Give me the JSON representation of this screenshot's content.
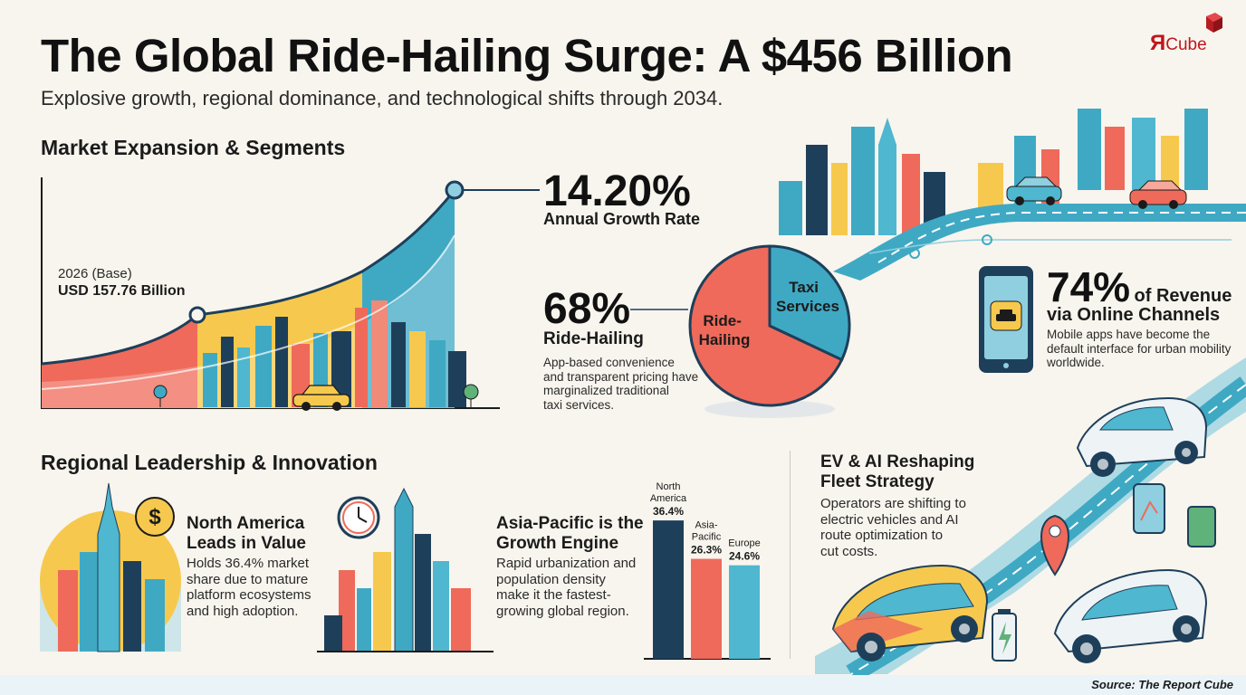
{
  "header": {
    "title": "The Global Ride-Hailing Surge: A $456 Billion",
    "subtitle": "Explosive growth, regional dominance, and technological shifts through 2034."
  },
  "logo": {
    "mark": "Я",
    "text": "Cube"
  },
  "market": {
    "heading": "Market Expansion & Segments",
    "base_year_label": "2026 (Base)",
    "base_value_label": "USD 157.76 Billion",
    "growth_value": "14.20%",
    "growth_label": "Annual Growth Rate"
  },
  "segments": {
    "ride_hailing_value": "68%",
    "ride_hailing_label": "Ride-Hailing",
    "ride_hailing_desc_lines": [
      "App-based convenience",
      "and transparent pricing have",
      "marginalized traditional",
      "taxi services."
    ],
    "pie_label_ride": [
      "Ride-",
      "Hailing"
    ],
    "pie_label_taxi": [
      "Taxi",
      "Services"
    ]
  },
  "online": {
    "value": "74%",
    "value_suffix": "of Revenue",
    "label": "via Online Channels",
    "desc_lines": [
      "Mobile apps have become the",
      "default interface for urban mobility",
      "worldwide."
    ]
  },
  "regional": {
    "heading": "Regional Leadership & Innovation",
    "na_title_lines": [
      "North America",
      "Leads in Value"
    ],
    "na_desc_lines": [
      "Holds 36.4% market",
      "share due to mature",
      "platform ecosystems",
      "and high adoption."
    ],
    "ap_title_lines": [
      "Asia-Pacific is the",
      "Growth Engine"
    ],
    "ap_desc_lines": [
      "Rapid urbanization and",
      "population density",
      "make it the fastest-",
      "growing global region."
    ]
  },
  "ev": {
    "title_lines": [
      "EV & AI Reshaping",
      "Fleet Strategy"
    ],
    "desc_lines": [
      "Operators are shifting to",
      "electric vehicles and AI",
      "route optimization to",
      "cut costs."
    ]
  },
  "source": "Source: The Report Cube",
  "colors": {
    "coral": "#ef6a5a",
    "yellow": "#f6c94e",
    "teal": "#3fa9c4",
    "navy": "#1e3f5a",
    "dark_text": "#111111"
  },
  "chart_data": [
    {
      "type": "area",
      "title": "",
      "xlabel": "",
      "ylabel": "",
      "note": "Growth curve illustration",
      "annotations": [
        "2026 (Base)",
        "USD 157.76 Billion",
        "14.20%",
        "Annual Growth Rate"
      ]
    },
    {
      "type": "pie",
      "categories": [
        "Ride-Hailing",
        "Taxi Services"
      ],
      "values": [
        68,
        32
      ]
    },
    {
      "type": "bar",
      "categories": [
        "North America",
        "Asia-Pacific",
        "Europe"
      ],
      "category_lines": [
        [
          "North",
          "America"
        ],
        [
          "Asia-",
          "Pacific"
        ],
        [
          "Europe"
        ]
      ],
      "values": [
        36.4,
        26.3,
        24.6
      ],
      "value_labels": [
        "36.4%",
        "26.3%",
        "24.6%"
      ],
      "colors": [
        "#1e3f5a",
        "#ef6a5a",
        "#4fb7cf"
      ]
    }
  ]
}
